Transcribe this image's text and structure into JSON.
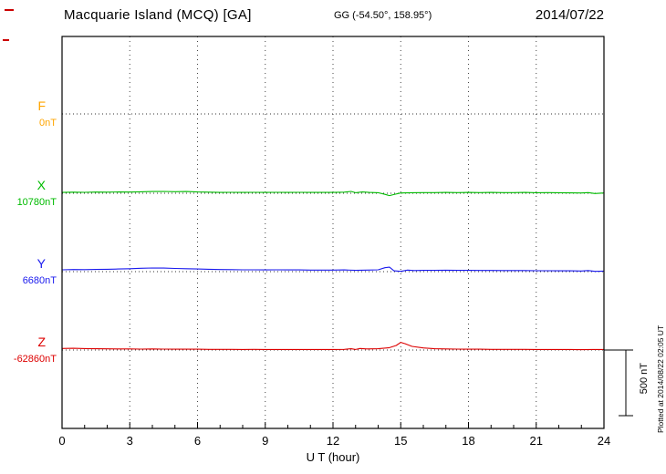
{
  "header": {
    "station_title": "Macquarie Island (MCQ)  [GA]",
    "coords": "GG (-54.50°, 158.95°)",
    "date": "2014/07/22"
  },
  "footer_note": "Plotted at 2014/08/22 02:05 UT",
  "scale_bar": {
    "label": "500 nT",
    "nT": 500
  },
  "xaxis": {
    "label": "U T (hour)",
    "ticks": [
      0,
      3,
      6,
      9,
      12,
      15,
      18,
      21,
      24
    ],
    "min": 0,
    "max": 24
  },
  "chart_data": {
    "type": "line",
    "title": "Macquarie Island (MCQ) [GA] magnetogram 2014/07/22",
    "xlabel": "U T (hour)",
    "x_range": [
      0,
      24
    ],
    "grid": "dotted vertical every 3 hours, dotted horizontal baseline per component",
    "scale_nT_per_bar": 500,
    "series": [
      {
        "name": "F",
        "baseline_label": "0nT",
        "baseline_nT": 0,
        "color": "#ffa500",
        "points": []
      },
      {
        "name": "X",
        "baseline_label": "10780nT",
        "baseline_nT": 10780,
        "color": "#00bb00",
        "points": [
          [
            0,
            6
          ],
          [
            0.5,
            8
          ],
          [
            1,
            7
          ],
          [
            1.5,
            9
          ],
          [
            2,
            8
          ],
          [
            2.5,
            10
          ],
          [
            3,
            9
          ],
          [
            3.5,
            11
          ],
          [
            4,
            13
          ],
          [
            4.5,
            14
          ],
          [
            5,
            12
          ],
          [
            5.5,
            13
          ],
          [
            6,
            10
          ],
          [
            6.5,
            8
          ],
          [
            7,
            6
          ],
          [
            7.5,
            7
          ],
          [
            8,
            6
          ],
          [
            8.5,
            7
          ],
          [
            9,
            6
          ],
          [
            9.5,
            7
          ],
          [
            10,
            6
          ],
          [
            10.5,
            7
          ],
          [
            11,
            6
          ],
          [
            11.5,
            6
          ],
          [
            12,
            6
          ],
          [
            12.5,
            8
          ],
          [
            12.8,
            14
          ],
          [
            13,
            4
          ],
          [
            13.3,
            10
          ],
          [
            13.6,
            6
          ],
          [
            14,
            4
          ],
          [
            14.3,
            -8
          ],
          [
            14.5,
            -18
          ],
          [
            14.7,
            -10
          ],
          [
            15,
            2
          ],
          [
            15.5,
            4
          ],
          [
            16,
            5
          ],
          [
            16.5,
            5
          ],
          [
            17,
            6
          ],
          [
            17.5,
            5
          ],
          [
            18,
            6
          ],
          [
            18.5,
            5
          ],
          [
            19,
            6
          ],
          [
            19.5,
            5
          ],
          [
            20,
            5
          ],
          [
            20.5,
            6
          ],
          [
            21,
            4
          ],
          [
            21.5,
            5
          ],
          [
            22,
            4
          ],
          [
            22.5,
            3
          ],
          [
            23,
            2
          ],
          [
            23.3,
            5
          ],
          [
            23.6,
            -2
          ],
          [
            24,
            2
          ]
        ]
      },
      {
        "name": "Y",
        "baseline_label": "6680nT",
        "baseline_nT": 6680,
        "color": "#1a1aee",
        "points": [
          [
            0,
            14
          ],
          [
            0.5,
            16
          ],
          [
            1,
            15
          ],
          [
            1.5,
            17
          ],
          [
            2,
            18
          ],
          [
            2.5,
            20
          ],
          [
            3,
            22
          ],
          [
            3.5,
            26
          ],
          [
            4,
            28
          ],
          [
            4.5,
            27
          ],
          [
            5,
            24
          ],
          [
            5.5,
            22
          ],
          [
            6,
            20
          ],
          [
            6.5,
            18
          ],
          [
            7,
            16
          ],
          [
            7.5,
            15
          ],
          [
            8,
            14
          ],
          [
            8.5,
            14
          ],
          [
            9,
            13
          ],
          [
            9.5,
            14
          ],
          [
            10,
            13
          ],
          [
            10.5,
            13
          ],
          [
            11,
            12
          ],
          [
            11.5,
            12
          ],
          [
            12,
            12
          ],
          [
            12.5,
            13
          ],
          [
            13,
            10
          ],
          [
            13.5,
            12
          ],
          [
            14,
            14
          ],
          [
            14.3,
            30
          ],
          [
            14.5,
            34
          ],
          [
            14.7,
            6
          ],
          [
            15,
            2
          ],
          [
            15.3,
            12
          ],
          [
            15.6,
            8
          ],
          [
            16,
            10
          ],
          [
            16.5,
            10
          ],
          [
            17,
            11
          ],
          [
            17.5,
            10
          ],
          [
            18,
            10
          ],
          [
            18.5,
            9
          ],
          [
            19,
            9
          ],
          [
            19.5,
            8
          ],
          [
            20,
            8
          ],
          [
            20.5,
            8
          ],
          [
            21,
            7
          ],
          [
            21.5,
            7
          ],
          [
            22,
            6
          ],
          [
            22.5,
            6
          ],
          [
            23,
            5
          ],
          [
            23.3,
            8
          ],
          [
            23.6,
            2
          ],
          [
            24,
            4
          ]
        ]
      },
      {
        "name": "Z",
        "baseline_label": "-62860nT",
        "baseline_nT": -62860,
        "color": "#dd0000",
        "points": [
          [
            0,
            12
          ],
          [
            0.5,
            13
          ],
          [
            1,
            11
          ],
          [
            1.5,
            10
          ],
          [
            2,
            9
          ],
          [
            2.5,
            8
          ],
          [
            3,
            8
          ],
          [
            3.5,
            7
          ],
          [
            4,
            8
          ],
          [
            4.5,
            7
          ],
          [
            5,
            6
          ],
          [
            5.5,
            6
          ],
          [
            6,
            6
          ],
          [
            6.5,
            5
          ],
          [
            7,
            5
          ],
          [
            7.5,
            5
          ],
          [
            8,
            4
          ],
          [
            8.5,
            5
          ],
          [
            9,
            4
          ],
          [
            9.5,
            4
          ],
          [
            10,
            4
          ],
          [
            10.5,
            4
          ],
          [
            11,
            4
          ],
          [
            11.5,
            4
          ],
          [
            12,
            4
          ],
          [
            12.5,
            5
          ],
          [
            12.8,
            10
          ],
          [
            13,
            4
          ],
          [
            13.2,
            12
          ],
          [
            13.5,
            8
          ],
          [
            14,
            10
          ],
          [
            14.5,
            18
          ],
          [
            14.8,
            35
          ],
          [
            15,
            58
          ],
          [
            15.2,
            48
          ],
          [
            15.5,
            28
          ],
          [
            16,
            16
          ],
          [
            16.5,
            10
          ],
          [
            17,
            8
          ],
          [
            17.5,
            7
          ],
          [
            18,
            6
          ],
          [
            18.5,
            6
          ],
          [
            19,
            5
          ],
          [
            19.5,
            5
          ],
          [
            20,
            5
          ],
          [
            20.5,
            5
          ],
          [
            21,
            4
          ],
          [
            21.5,
            4
          ],
          [
            22,
            4
          ],
          [
            22.5,
            4
          ],
          [
            23,
            3
          ],
          [
            23.5,
            4
          ],
          [
            24,
            4
          ]
        ]
      }
    ]
  }
}
